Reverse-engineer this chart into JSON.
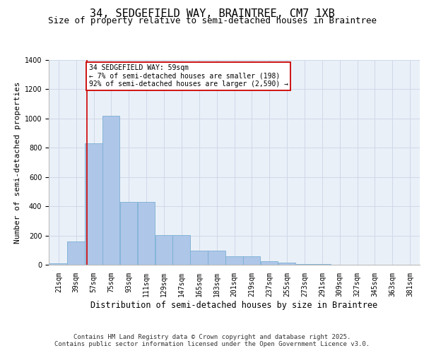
{
  "title1": "34, SEDGEFIELD WAY, BRAINTREE, CM7 1XB",
  "title2": "Size of property relative to semi-detached houses in Braintree",
  "xlabel": "Distribution of semi-detached houses by size in Braintree",
  "ylabel": "Number of semi-detached properties",
  "bins": [
    21,
    39,
    57,
    75,
    93,
    111,
    129,
    147,
    165,
    183,
    201,
    219,
    237,
    255,
    273,
    291,
    309,
    327,
    345,
    363,
    381
  ],
  "bar_heights": [
    10,
    160,
    830,
    1020,
    430,
    430,
    205,
    205,
    95,
    95,
    60,
    60,
    25,
    15,
    5,
    3,
    2,
    1,
    1,
    0
  ],
  "bar_color": "#aec6e8",
  "bar_edge_color": "#7aafd4",
  "grid_color": "#d0d8e8",
  "bg_color": "#eaf0f8",
  "vline_x": 59,
  "vline_color": "#cc0000",
  "annotation_text": "34 SEDGEFIELD WAY: 59sqm\n← 7% of semi-detached houses are smaller (198)\n92% of semi-detached houses are larger (2,590) →",
  "annotation_box_color": "#ffffff",
  "annotation_border_color": "#cc0000",
  "ylim": [
    0,
    1400
  ],
  "yticks": [
    0,
    200,
    400,
    600,
    800,
    1000,
    1200,
    1400
  ],
  "footer1": "Contains HM Land Registry data © Crown copyright and database right 2025.",
  "footer2": "Contains public sector information licensed under the Open Government Licence v3.0.",
  "title_fontsize": 11,
  "subtitle_fontsize": 9,
  "tick_fontsize": 7,
  "ylabel_fontsize": 8,
  "xlabel_fontsize": 8.5,
  "footer_fontsize": 6.5
}
